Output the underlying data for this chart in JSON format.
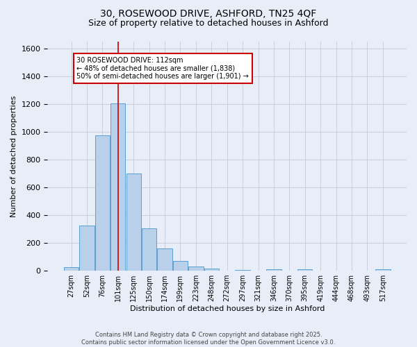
{
  "title_line1": "30, ROSEWOOD DRIVE, ASHFORD, TN25 4QF",
  "title_line2": "Size of property relative to detached houses in Ashford",
  "xlabel": "Distribution of detached houses by size in Ashford",
  "ylabel": "Number of detached properties",
  "bar_labels": [
    "27sqm",
    "52sqm",
    "76sqm",
    "101sqm",
    "125sqm",
    "150sqm",
    "174sqm",
    "199sqm",
    "223sqm",
    "248sqm",
    "272sqm",
    "297sqm",
    "321sqm",
    "346sqm",
    "370sqm",
    "395sqm",
    "419sqm",
    "444sqm",
    "468sqm",
    "493sqm",
    "517sqm"
  ],
  "bar_values": [
    25,
    325,
    975,
    1205,
    700,
    305,
    160,
    70,
    30,
    15,
    0,
    5,
    0,
    10,
    0,
    10,
    0,
    0,
    0,
    0,
    10
  ],
  "bar_color": "#b8d0ea",
  "bar_edge_color": "#5a9fd4",
  "vline_x": 3.0,
  "vline_color": "#cc0000",
  "ylim": [
    0,
    1650
  ],
  "yticks": [
    0,
    200,
    400,
    600,
    800,
    1000,
    1200,
    1400,
    1600
  ],
  "annotation_text": "30 ROSEWOOD DRIVE: 112sqm\n← 48% of detached houses are smaller (1,838)\n50% of semi-detached houses are larger (1,901) →",
  "footer_line1": "Contains HM Land Registry data © Crown copyright and database right 2025.",
  "footer_line2": "Contains public sector information licensed under the Open Government Licence v3.0.",
  "background_color": "#e8eef8",
  "plot_background": "#e8eef8",
  "grid_color": "#c8c8d8",
  "title_fontsize": 10,
  "subtitle_fontsize": 9,
  "xlabel_fontsize": 8,
  "ylabel_fontsize": 8
}
